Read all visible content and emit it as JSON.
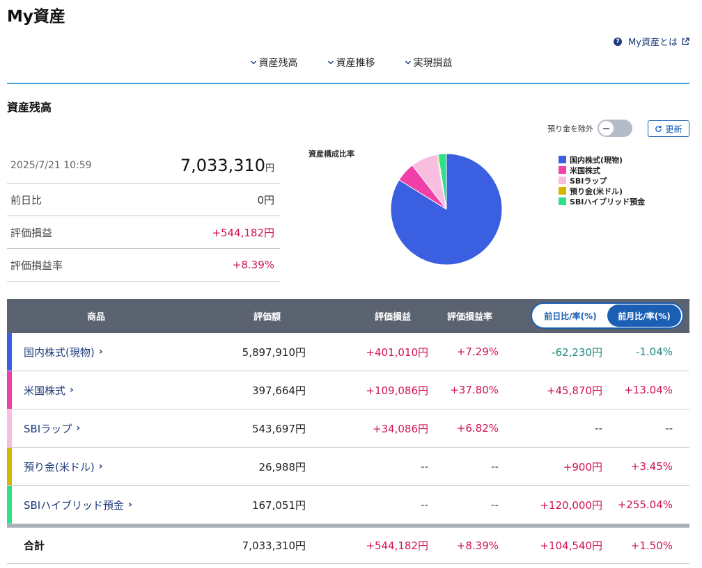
{
  "header": {
    "title": "My資産",
    "help_link": "My資産とは"
  },
  "nav": [
    {
      "label": "資産残高"
    },
    {
      "label": "資産推移"
    },
    {
      "label": "実現損益"
    }
  ],
  "section": {
    "title": "資産残高",
    "toggle_label": "預り金を除外",
    "toggle_on": false,
    "refresh_label": "更新"
  },
  "summary": {
    "datetime": "2025/7/21 10:59",
    "total_value": "7,033,310",
    "total_unit": "円",
    "rows": [
      {
        "label": "前日比",
        "value": "0円"
      },
      {
        "label": "評価損益",
        "value": "+544,182円"
      },
      {
        "label": "評価損益率",
        "value": "+8.39%"
      }
    ]
  },
  "chart_data": {
    "type": "pie",
    "title": "資産構成比率",
    "labels": [
      "国内株式(現物)",
      "米国株式",
      "SBIラップ",
      "預り金(米ドル)",
      "SBIハイブリッド預金"
    ],
    "values": [
      5897910,
      397664,
      543697,
      26988,
      167051
    ],
    "colors": [
      "#3a5fe0",
      "#f040a8",
      "#f9bde0",
      "#d4b800",
      "#2fe08a"
    ],
    "legend_position": "right"
  },
  "table": {
    "headers": {
      "product": "商品",
      "value": "評価額",
      "pl": "評価損益",
      "pl_rate": "評価損益率"
    },
    "period_toggle": {
      "options": [
        "前日比/率(%)",
        "前月比/率(%)"
      ],
      "selected": "前月比/率(%)"
    },
    "rows": [
      {
        "name": "国内株式(現物)",
        "value": "5,897,910円",
        "pl": "+401,010円",
        "pl_rate": "+7.29%",
        "change": "-62,230円",
        "change_rate": "-1.04%",
        "color": "#3a5fe0"
      },
      {
        "name": "米国株式",
        "value": "397,664円",
        "pl": "+109,086円",
        "pl_rate": "+37.80%",
        "change": "+45,870円",
        "change_rate": "+13.04%",
        "color": "#f040a8"
      },
      {
        "name": "SBIラップ",
        "value": "543,697円",
        "pl": "+34,086円",
        "pl_rate": "+6.82%",
        "change": "--",
        "change_rate": "--",
        "color": "#f9bde0"
      },
      {
        "name": "預り金(米ドル)",
        "value": "26,988円",
        "pl": "--",
        "pl_rate": "--",
        "change": "+900円",
        "change_rate": "+3.45%",
        "color": "#d4b800"
      },
      {
        "name": "SBIハイブリッド預金",
        "value": "167,051円",
        "pl": "--",
        "pl_rate": "--",
        "change": "+120,000円",
        "change_rate": "+255.04%",
        "color": "#2fe08a"
      }
    ],
    "total": {
      "label": "合計",
      "value": "7,033,310円",
      "pl": "+544,182円",
      "pl_rate": "+8.39%",
      "change": "+104,540円",
      "change_rate": "+1.50%"
    }
  }
}
